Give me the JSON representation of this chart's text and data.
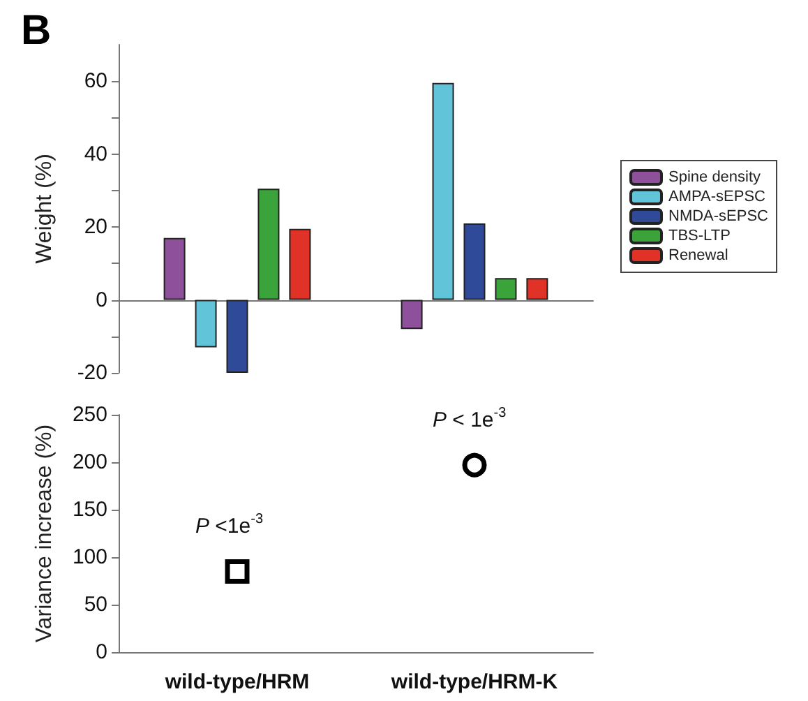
{
  "chart_data": [
    {
      "type": "bar",
      "title": "B",
      "ylabel": "Weight (%)",
      "categories": [
        null,
        null
      ],
      "tick_labels": "y",
      "legend": "right",
      "ylim": [
        -20,
        70
      ],
      "yticks": [
        -20,
        {
          "value": -10,
          "label": null
        },
        0,
        {
          "value": 10,
          "label": null
        },
        20,
        {
          "value": 30,
          "label": null
        },
        40,
        {
          "value": 50,
          "label": null
        },
        60
      ],
      "series": [
        {
          "name": "Spine density",
          "color": "#8e4f9b",
          "values": [
            17,
            -8
          ]
        },
        {
          "name": "AMPA-sEPSC",
          "color": "#62c4d9",
          "values": [
            -13,
            59.5
          ]
        },
        {
          "name": "NMDA-sEPSC",
          "color": "#2f4a99",
          "values": [
            -20,
            21
          ]
        },
        {
          "name": "TBS-LTP",
          "color": "#3aa33a",
          "values": [
            30.5,
            6
          ]
        },
        {
          "name": "Renewal",
          "color": "#e03227",
          "values": [
            19.5,
            6
          ]
        }
      ]
    },
    {
      "type": "scatter",
      "ylabel": "Variance increase (%)",
      "categories": [
        "wild-type/HRM",
        "wild-type/HRM-K"
      ],
      "ylim": [
        0,
        250
      ],
      "yticks": [
        0,
        50,
        100,
        150,
        200,
        250
      ],
      "series": [
        {
          "color": "#000000",
          "marker": "square",
          "x": [
            "wild-type/HRM"
          ],
          "values": [
            85
          ]
        },
        {
          "color": "#000000",
          "marker": "circle",
          "x": [
            "wild-type/HRM-K"
          ],
          "values": [
            197
          ]
        }
      ],
      "annotations": [
        {
          "text": "P <1e$^{-3}$",
          "x": "wild-type/HRM",
          "y": 85
        },
        {
          "text": "P < 1e$^{-3}$",
          "x": "wild-type/HRM-K",
          "y": 197
        }
      ]
    }
  ]
}
